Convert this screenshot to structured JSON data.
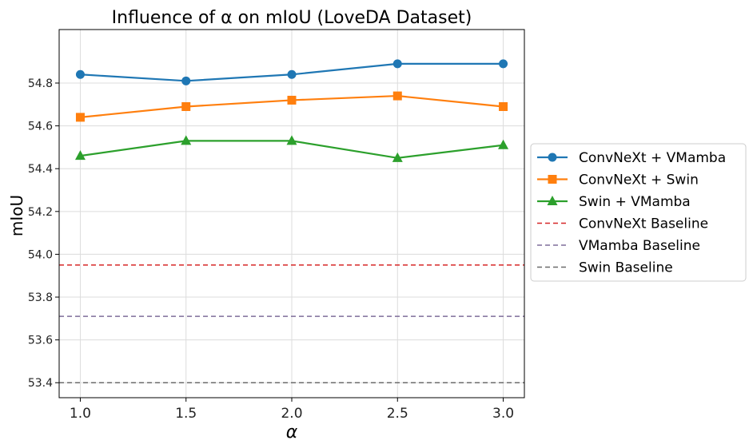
{
  "chart_data": {
    "type": "line",
    "title": "Influence of α on mIoU (LoveDA Dataset)",
    "xlabel": "α",
    "ylabel": "mIoU",
    "x": [
      1.0,
      1.5,
      2.0,
      2.5,
      3.0
    ],
    "x_tick_labels": [
      "1.0",
      "1.5",
      "2.0",
      "2.5",
      "3.0"
    ],
    "y_ticks": [
      53.4,
      53.6,
      53.8,
      54.0,
      54.2,
      54.4,
      54.6,
      54.8
    ],
    "y_tick_labels": [
      "53.4",
      "53.6",
      "53.8",
      "54.0",
      "54.2",
      "54.4",
      "54.6",
      "54.8"
    ],
    "xlim": [
      0.9,
      3.1
    ],
    "ylim": [
      53.33,
      55.05
    ],
    "grid": true,
    "legend_position": "outside-right",
    "series": [
      {
        "name": "ConvNeXt + VMamba",
        "values": [
          54.84,
          54.81,
          54.84,
          54.89,
          54.89
        ],
        "color": "#1f77b4",
        "marker": "circle"
      },
      {
        "name": "ConvNeXt + Swin",
        "values": [
          54.64,
          54.69,
          54.72,
          54.74,
          54.69
        ],
        "color": "#ff7f0e",
        "marker": "square"
      },
      {
        "name": "Swin + VMamba",
        "values": [
          54.46,
          54.53,
          54.53,
          54.45,
          54.51
        ],
        "color": "#2ca02c",
        "marker": "triangle"
      }
    ],
    "baselines": [
      {
        "name": "ConvNeXt Baseline",
        "value": 53.95,
        "color": "#d62728",
        "style": "dashed"
      },
      {
        "name": "VMamba Baseline",
        "value": 53.71,
        "color": "#7f6d9a",
        "style": "dashed"
      },
      {
        "name": "Swin Baseline",
        "value": 53.4,
        "color": "#6b6b6b",
        "style": "dashed"
      }
    ]
  }
}
